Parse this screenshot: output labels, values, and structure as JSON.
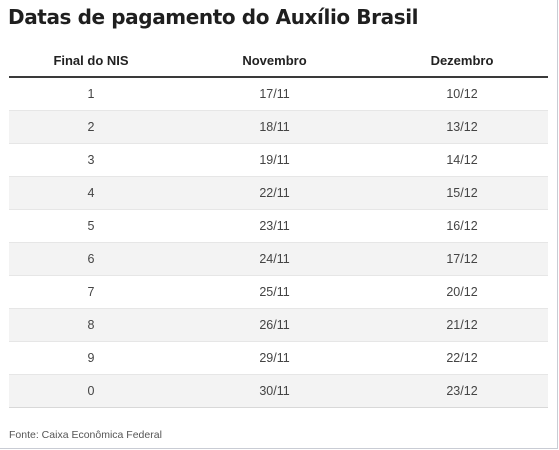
{
  "title": "Datas de pagamento do Auxílio Brasil",
  "table": {
    "headers": [
      "Final do NIS",
      "Novembro",
      "Dezembro"
    ],
    "rows": [
      [
        "1",
        "17/11",
        "10/12"
      ],
      [
        "2",
        "18/11",
        "13/12"
      ],
      [
        "3",
        "19/11",
        "14/12"
      ],
      [
        "4",
        "22/11",
        "15/12"
      ],
      [
        "5",
        "23/11",
        "16/12"
      ],
      [
        "6",
        "24/11",
        "17/12"
      ],
      [
        "7",
        "25/11",
        "20/12"
      ],
      [
        "8",
        "26/11",
        "21/12"
      ],
      [
        "9",
        "29/11",
        "22/12"
      ],
      [
        "0",
        "30/11",
        "23/12"
      ]
    ]
  },
  "source": "Fonte: Caixa Econômica Federal"
}
